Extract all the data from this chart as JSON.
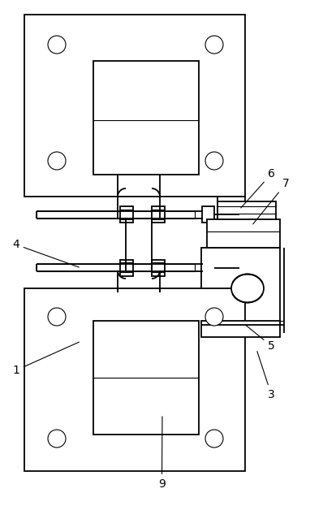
{
  "bg_color": "#ffffff",
  "lc": "#000000",
  "lw": 1.3,
  "tlw": 0.8,
  "fig_w": 3.82,
  "fig_h": 6.23,
  "dpi": 100
}
